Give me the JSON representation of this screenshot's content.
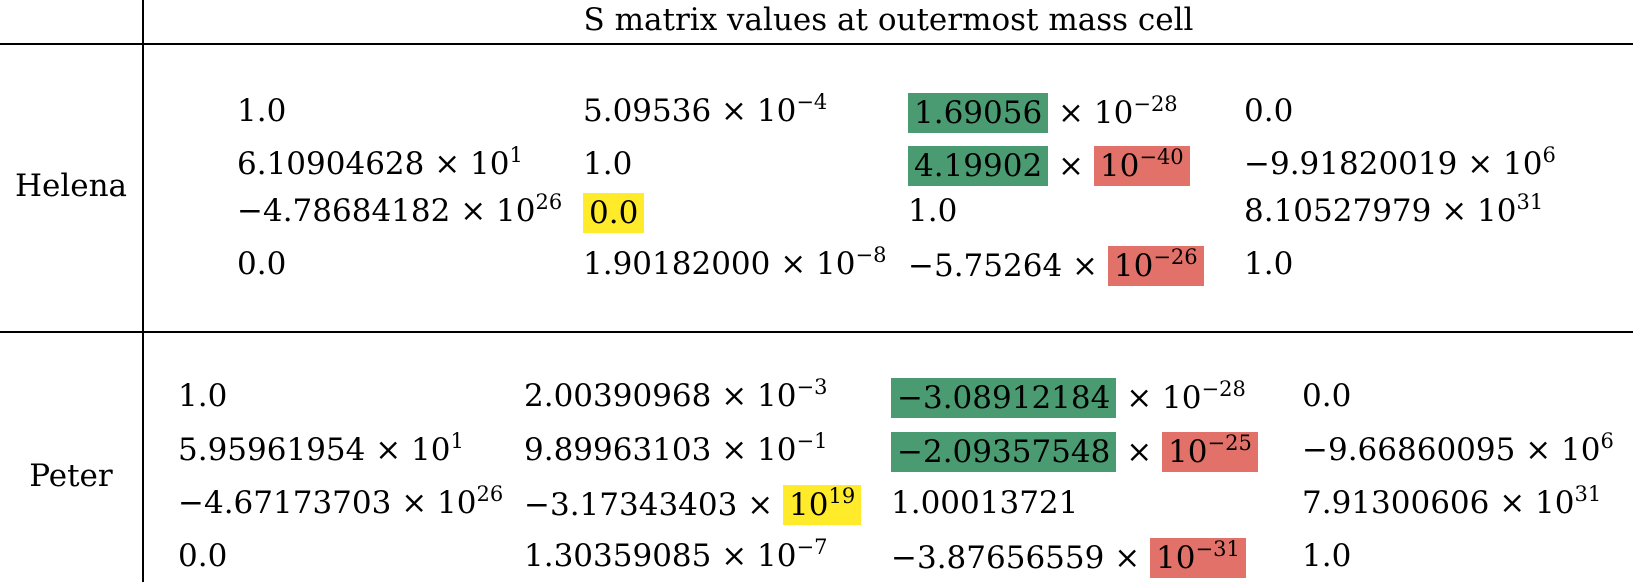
{
  "header": "S matrix values at outermost mass cell",
  "colors": {
    "green": "#4a9b72",
    "red": "#e27269",
    "yellow": "#ffeb2a"
  },
  "rows": [
    {
      "label": "Helena",
      "cells": [
        [
          {
            "parts": [
              {
                "m": "1.0",
                "e": ""
              }
            ]
          },
          {
            "parts": [
              {
                "m": "5.09536 × 10",
                "e": "−4"
              }
            ]
          },
          {
            "parts": [
              {
                "m": "1.69056",
                "e": "",
                "hl": "green"
              },
              {
                "m": " × 10",
                "e": "−28"
              }
            ]
          },
          {
            "parts": [
              {
                "m": "0.0",
                "e": ""
              }
            ]
          }
        ],
        [
          {
            "parts": [
              {
                "m": "6.10904628 × 10",
                "e": "1"
              }
            ]
          },
          {
            "parts": [
              {
                "m": "1.0",
                "e": ""
              }
            ]
          },
          {
            "parts": [
              {
                "m": "4.19902",
                "e": "",
                "hl": "green"
              },
              {
                "m": " × ",
                "e": ""
              },
              {
                "m": "10",
                "e": "−40",
                "hl": "red"
              }
            ]
          },
          {
            "parts": [
              {
                "m": "−9.91820019 × 10",
                "e": "6"
              }
            ]
          }
        ],
        [
          {
            "parts": [
              {
                "m": "−4.78684182 × 10",
                "e": "26"
              }
            ]
          },
          {
            "parts": [
              {
                "m": "0.0",
                "e": "",
                "hl": "yellow"
              }
            ]
          },
          {
            "parts": [
              {
                "m": "1.0",
                "e": ""
              }
            ]
          },
          {
            "parts": [
              {
                "m": "8.10527979 × 10",
                "e": "31"
              }
            ]
          }
        ],
        [
          {
            "parts": [
              {
                "m": "0.0",
                "e": ""
              }
            ]
          },
          {
            "parts": [
              {
                "m": "1.90182000 × 10",
                "e": "−8"
              }
            ]
          },
          {
            "parts": [
              {
                "m": "−5.75264 × ",
                "e": ""
              },
              {
                "m": "10",
                "e": "−26",
                "hl": "red"
              }
            ]
          },
          {
            "parts": [
              {
                "m": "1.0",
                "e": ""
              }
            ]
          }
        ]
      ]
    },
    {
      "label": "Peter",
      "cells": [
        [
          {
            "parts": [
              {
                "m": "1.0",
                "e": ""
              }
            ]
          },
          {
            "parts": [
              {
                "m": "2.00390968 × 10",
                "e": "−3"
              }
            ]
          },
          {
            "parts": [
              {
                "m": "−3.08912184",
                "e": "",
                "hl": "green"
              },
              {
                "m": " × 10",
                "e": "−28"
              }
            ]
          },
          {
            "parts": [
              {
                "m": "0.0",
                "e": ""
              }
            ]
          }
        ],
        [
          {
            "parts": [
              {
                "m": "5.95961954 × 10",
                "e": "1"
              }
            ]
          },
          {
            "parts": [
              {
                "m": "9.89963103 × 10",
                "e": "−1"
              }
            ]
          },
          {
            "parts": [
              {
                "m": "−2.09357548",
                "e": "",
                "hl": "green"
              },
              {
                "m": " × ",
                "e": ""
              },
              {
                "m": "10",
                "e": "−25",
                "hl": "red"
              }
            ]
          },
          {
            "parts": [
              {
                "m": "−9.66860095 × 10",
                "e": "6"
              }
            ]
          }
        ],
        [
          {
            "parts": [
              {
                "m": "−4.67173703 × 10",
                "e": "26"
              }
            ]
          },
          {
            "parts": [
              {
                "m": "−3.17343403 × ",
                "e": ""
              },
              {
                "m": "10",
                "e": "19",
                "hl": "yellow"
              }
            ]
          },
          {
            "parts": [
              {
                "m": "1.00013721",
                "e": ""
              }
            ]
          },
          {
            "parts": [
              {
                "m": "7.91300606 × 10",
                "e": "31"
              }
            ]
          }
        ],
        [
          {
            "parts": [
              {
                "m": "0.0",
                "e": ""
              }
            ]
          },
          {
            "parts": [
              {
                "m": "1.30359085 × 10",
                "e": "−7"
              }
            ]
          },
          {
            "parts": [
              {
                "m": "−3.87656559 × ",
                "e": ""
              },
              {
                "m": "10",
                "e": "−31",
                "hl": "red"
              }
            ]
          },
          {
            "parts": [
              {
                "m": "1.0",
                "e": ""
              }
            ]
          }
        ]
      ]
    }
  ]
}
